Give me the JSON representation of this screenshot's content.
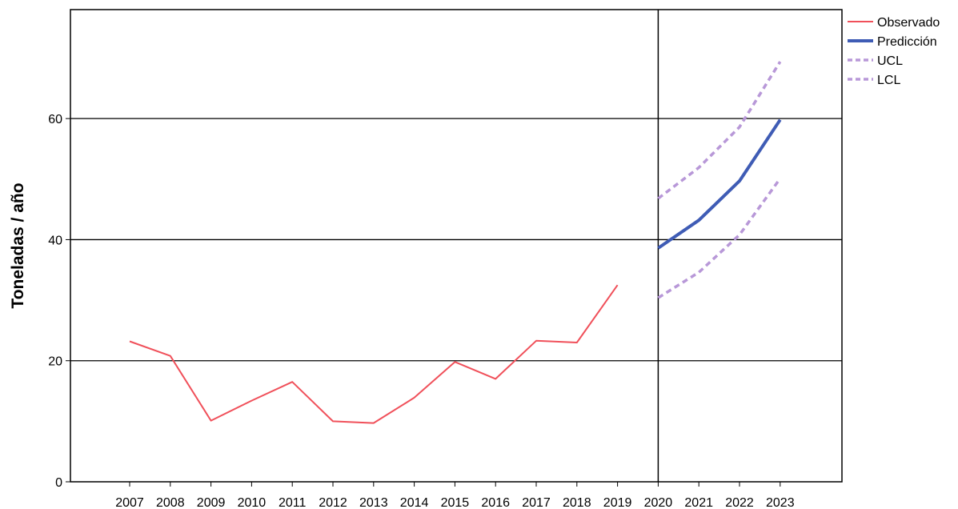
{
  "chart_data": {
    "type": "line",
    "title": "",
    "xlabel": "",
    "ylabel": "Toneladas / año",
    "categories": [
      "2007",
      "2008",
      "2009",
      "2010",
      "2011",
      "2012",
      "2013",
      "2014",
      "2015",
      "2016",
      "2017",
      "2018",
      "2019",
      "2020",
      "2021",
      "2022",
      "2023"
    ],
    "ylim": [
      0,
      78
    ],
    "yticks": [
      0,
      20,
      40,
      60
    ],
    "grid": "horizontal at 20, 40, 60",
    "forecast_divider_at": "2020",
    "legend_position": "top-right, outside plot",
    "series": [
      {
        "name": "Observado",
        "color": "#f0505a",
        "style": "solid",
        "values": [
          23.2,
          20.8,
          10.1,
          13.4,
          16.5,
          10.0,
          9.7,
          13.9,
          19.8,
          17.0,
          23.3,
          23.0,
          32.5,
          null,
          null,
          null,
          null
        ]
      },
      {
        "name": "Predicción",
        "color": "#3f5cb5",
        "style": "solid-thick",
        "values": [
          null,
          null,
          null,
          null,
          null,
          null,
          null,
          null,
          null,
          null,
          null,
          null,
          null,
          38.6,
          43.2,
          49.7,
          59.8
        ]
      },
      {
        "name": "UCL",
        "color": "#b898d8",
        "style": "dashed",
        "values": [
          null,
          null,
          null,
          null,
          null,
          null,
          null,
          null,
          null,
          null,
          null,
          null,
          null,
          46.8,
          51.9,
          58.6,
          69.4
        ]
      },
      {
        "name": "LCL",
        "color": "#b898d8",
        "style": "dashed",
        "values": [
          null,
          null,
          null,
          null,
          null,
          null,
          null,
          null,
          null,
          null,
          null,
          null,
          null,
          30.4,
          34.6,
          40.8,
          50.1
        ]
      }
    ]
  }
}
